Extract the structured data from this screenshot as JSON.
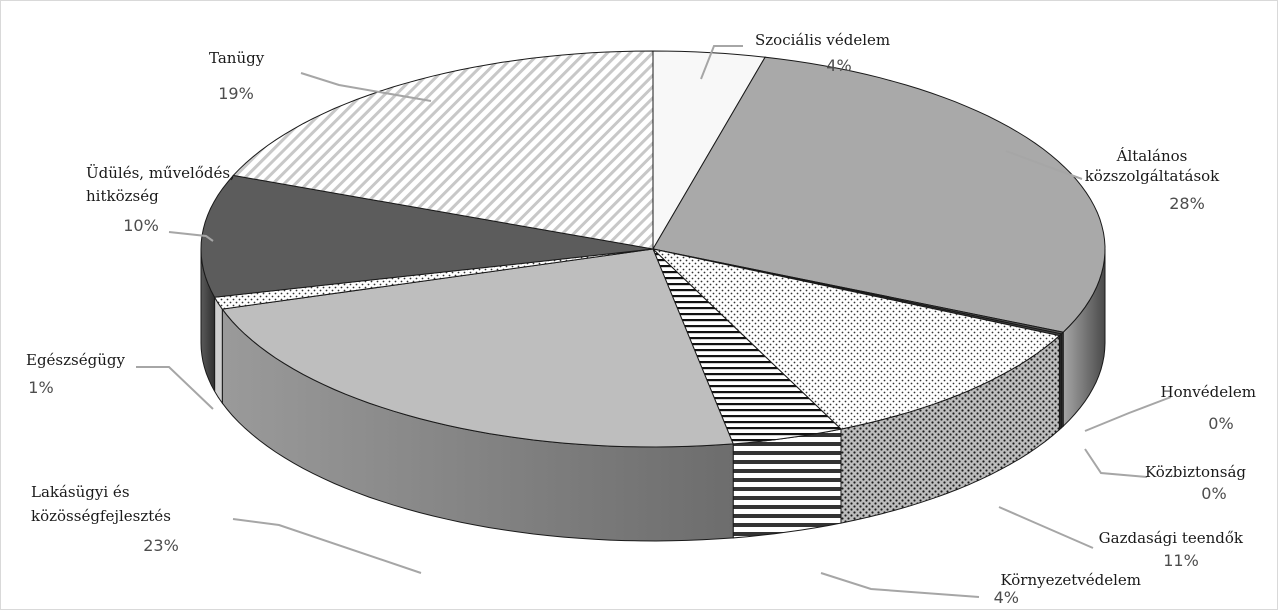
{
  "chart_data": {
    "type": "pie",
    "variant": "3d",
    "title": "",
    "slices": [
      {
        "label": "Szociális védelem",
        "value": 4,
        "value_label": "4%",
        "color": "#f8f8f8",
        "pattern": "none"
      },
      {
        "label": "Általános közszolgáltatások",
        "value": 28,
        "value_label": "28%",
        "color": "#a9a9a9",
        "pattern": "none"
      },
      {
        "label": "Honvédelem",
        "value": 0,
        "value_label": "0%",
        "color": "#5a5a5a",
        "pattern": "none"
      },
      {
        "label": "Közbiztonság",
        "value": 0,
        "value_label": "0%",
        "color": "#444444",
        "pattern": "none"
      },
      {
        "label": "Gazdasági teendők",
        "value": 11,
        "value_label": "11%",
        "color": "#ffffff",
        "pattern": "dots"
      },
      {
        "label": "Környezetvédelem",
        "value": 4,
        "value_label": "4%",
        "color": "#ffffff",
        "pattern": "horizontal-lines"
      },
      {
        "label": "Lakásügyi és közösségfejlesztés",
        "value": 23,
        "value_label": "23%",
        "color": "#bebebe",
        "pattern": "none"
      },
      {
        "label": "Egészségügy",
        "value": 1,
        "value_label": "1%",
        "color": "#f2f2f2",
        "pattern": "dots"
      },
      {
        "label": "Üdülés, művelődés, hitközség",
        "value": 10,
        "value_label": "10%",
        "color": "#5c5c5c",
        "pattern": "none"
      },
      {
        "label": "Tanügy",
        "value": 19,
        "value_label": "19%",
        "color": "#ffffff",
        "pattern": "diagonal-stripes"
      }
    ],
    "legend": "none"
  }
}
